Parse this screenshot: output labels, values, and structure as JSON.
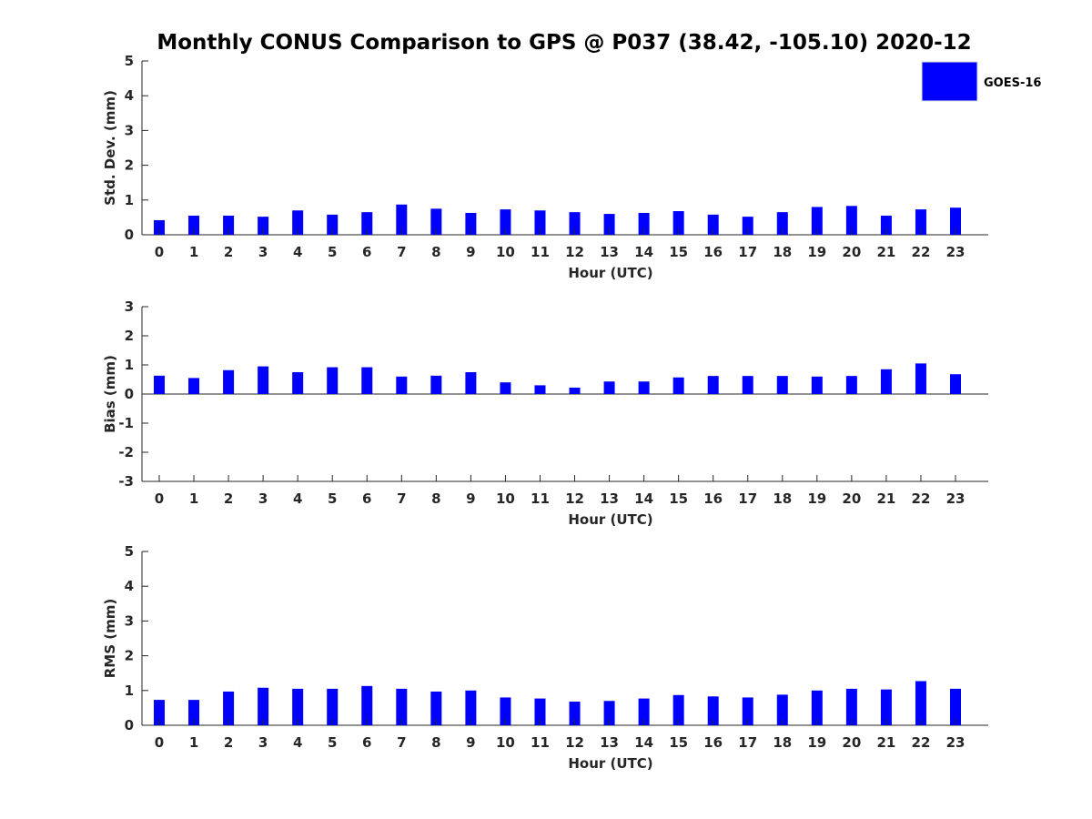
{
  "title": "Monthly CONUS Comparison to GPS @ P037 (38.42, -105.10) 2020-12",
  "legend": {
    "label": "GOES-16",
    "color": "#0000ff"
  },
  "chart_data": [
    {
      "type": "bar",
      "categories": [
        "0",
        "1",
        "2",
        "3",
        "4",
        "5",
        "6",
        "7",
        "8",
        "9",
        "10",
        "11",
        "12",
        "13",
        "14",
        "15",
        "16",
        "17",
        "18",
        "19",
        "20",
        "21",
        "22",
        "23"
      ],
      "series": [
        {
          "name": "GOES-16",
          "values": [
            0.42,
            0.55,
            0.55,
            0.52,
            0.7,
            0.58,
            0.65,
            0.87,
            0.75,
            0.63,
            0.73,
            0.7,
            0.65,
            0.6,
            0.63,
            0.68,
            0.58,
            0.52,
            0.65,
            0.8,
            0.83,
            0.55,
            0.73,
            0.78
          ]
        }
      ],
      "xlabel": "Hour (UTC)",
      "ylabel": "Std. Dev. (mm)",
      "ylim": [
        0,
        5
      ],
      "yticks": [
        "0",
        "1",
        "2",
        "3",
        "4",
        "5"
      ]
    },
    {
      "type": "bar",
      "categories": [
        "0",
        "1",
        "2",
        "3",
        "4",
        "5",
        "6",
        "7",
        "8",
        "9",
        "10",
        "11",
        "12",
        "13",
        "14",
        "15",
        "16",
        "17",
        "18",
        "19",
        "20",
        "21",
        "22",
        "23"
      ],
      "series": [
        {
          "name": "GOES-16",
          "values": [
            0.63,
            0.55,
            0.82,
            0.95,
            0.75,
            0.92,
            0.92,
            0.6,
            0.63,
            0.75,
            0.4,
            0.3,
            0.22,
            0.43,
            0.43,
            0.57,
            0.62,
            0.62,
            0.62,
            0.6,
            0.62,
            0.85,
            1.05,
            0.68
          ]
        }
      ],
      "xlabel": "Hour (UTC)",
      "ylabel": "Bias (mm)",
      "ylim": [
        -3,
        3
      ],
      "yticks": [
        "-3",
        "-2",
        "-1",
        "0",
        "1",
        "2",
        "3"
      ]
    },
    {
      "type": "bar",
      "categories": [
        "0",
        "1",
        "2",
        "3",
        "4",
        "5",
        "6",
        "7",
        "8",
        "9",
        "10",
        "11",
        "12",
        "13",
        "14",
        "15",
        "16",
        "17",
        "18",
        "19",
        "20",
        "21",
        "22",
        "23"
      ],
      "series": [
        {
          "name": "GOES-16",
          "values": [
            0.73,
            0.73,
            0.97,
            1.08,
            1.05,
            1.05,
            1.13,
            1.05,
            0.97,
            1.0,
            0.8,
            0.77,
            0.68,
            0.7,
            0.77,
            0.87,
            0.83,
            0.8,
            0.88,
            1.0,
            1.05,
            1.03,
            1.27,
            1.05
          ]
        }
      ],
      "xlabel": "Hour (UTC)",
      "ylabel": "RMS (mm)",
      "ylim": [
        0,
        5
      ],
      "yticks": [
        "0",
        "1",
        "2",
        "3",
        "4",
        "5"
      ]
    }
  ]
}
